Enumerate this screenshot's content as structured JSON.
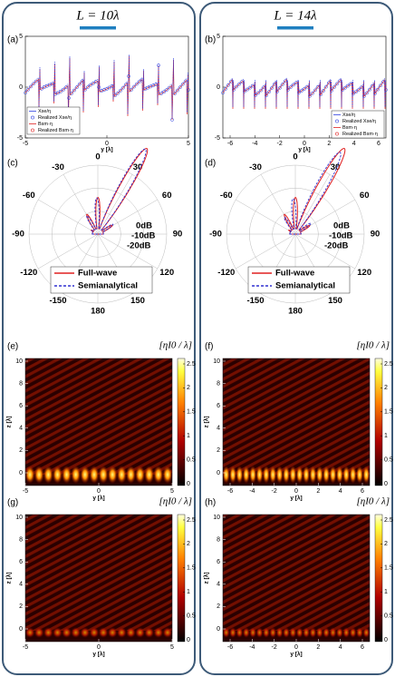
{
  "columns": [
    {
      "title": "L = 10λ",
      "line_plot": {
        "label": "(a)",
        "xticks": [
          -5,
          0,
          5
        ],
        "yticks": [
          -5,
          0,
          5
        ],
        "xlabel": "y [λ]",
        "legend": [
          "Xse/η",
          "Realized Xse/η",
          "Bsm·η",
          "Realized Bsm·η"
        ]
      },
      "polar": {
        "label": "(c)",
        "angles": [
          0,
          30,
          60,
          90,
          120,
          150,
          180,
          -150,
          -120,
          -90,
          -60,
          -30
        ],
        "radial": [
          "0dB",
          "-10dB",
          "-20dB"
        ],
        "legend": [
          "Full-wave",
          "Semianalytical"
        ]
      },
      "maps": [
        {
          "label": "(e)",
          "xticks": [
            -5,
            0,
            5
          ],
          "yticks": [
            0,
            2,
            4,
            6,
            8,
            10
          ],
          "xlabel": "y [λ]",
          "ylabel": "z [λ]",
          "cbar_ticks": [
            0,
            0.5,
            1,
            1.5,
            2,
            2.5
          ],
          "cbar_label": "[ηI0 / λ]"
        },
        {
          "label": "(g)",
          "xticks": [
            -5,
            0,
            5
          ],
          "yticks": [
            0,
            2,
            4,
            6,
            8,
            10
          ],
          "xlabel": "y [λ]",
          "ylabel": "z [λ]",
          "cbar_ticks": [
            0,
            0.5,
            1,
            1.5,
            2,
            2.5
          ],
          "cbar_label": "[ηI0 / λ]"
        }
      ]
    },
    {
      "title": "L = 14λ",
      "line_plot": {
        "label": "(b)",
        "xticks": [
          -6,
          -4,
          -2,
          0,
          2,
          4,
          6
        ],
        "yticks": [
          -5,
          0,
          5
        ],
        "xlabel": "y [λ]",
        "legend": [
          "Xse/η",
          "Realized Xse/η",
          "Bsm·η",
          "Realized Bsm·η"
        ]
      },
      "polar": {
        "label": "(d)",
        "angles": [
          0,
          30,
          60,
          90,
          120,
          150,
          180,
          -150,
          -120,
          -90,
          -60,
          -30
        ],
        "radial": [
          "0dB",
          "-10dB",
          "-20dB"
        ],
        "legend": [
          "Full-wave",
          "Semianalytical"
        ]
      },
      "maps": [
        {
          "label": "(f)",
          "xticks": [
            -6,
            -4,
            -2,
            0,
            2,
            4,
            6
          ],
          "yticks": [
            0,
            2,
            4,
            6,
            8,
            10
          ],
          "xlabel": "y [λ]",
          "ylabel": "z [λ]",
          "cbar_ticks": [
            0,
            0.5,
            1,
            1.5,
            2,
            2.5
          ],
          "cbar_label": "[ηI0 / λ]"
        },
        {
          "label": "(h)",
          "xticks": [
            -6,
            -4,
            -2,
            0,
            2,
            4,
            6
          ],
          "yticks": [
            0,
            2,
            4,
            6,
            8,
            10
          ],
          "xlabel": "y [λ]",
          "ylabel": "z [λ]",
          "cbar_ticks": [
            0,
            0.5,
            1,
            1.5,
            2,
            2.5
          ],
          "cbar_label": "[ηI0 / λ]"
        }
      ]
    }
  ]
}
